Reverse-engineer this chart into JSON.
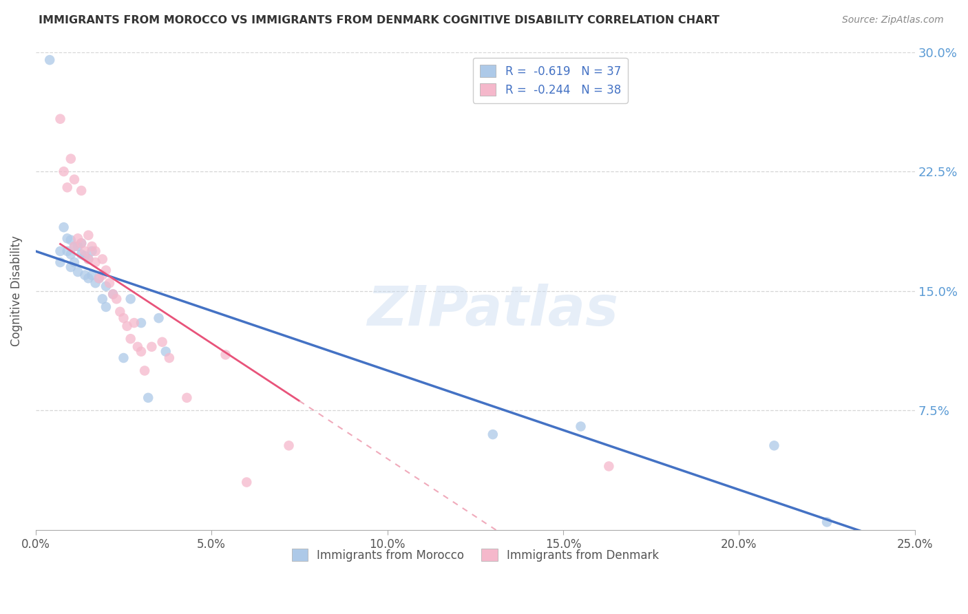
{
  "title": "IMMIGRANTS FROM MOROCCO VS IMMIGRANTS FROM DENMARK COGNITIVE DISABILITY CORRELATION CHART",
  "source": "Source: ZipAtlas.com",
  "ylabel": "Cognitive Disability",
  "ylabel_right_ticks": [
    "7.5%",
    "15.0%",
    "22.5%",
    "30.0%"
  ],
  "ylim": [
    0.0,
    0.3
  ],
  "xlim": [
    0.0,
    0.25
  ],
  "xticks": [
    0.0,
    0.05,
    0.1,
    0.15,
    0.2,
    0.25
  ],
  "yticks": [
    0.075,
    0.15,
    0.225,
    0.3
  ],
  "legend_entry1": {
    "label": "Immigrants from Morocco",
    "R": "-0.619",
    "N": "37",
    "color": "#adc9e8"
  },
  "legend_entry2": {
    "label": "Immigrants from Denmark",
    "R": "-0.244",
    "N": "38",
    "color": "#f5b8cb"
  },
  "watermark": "ZIPatlas",
  "morocco_x": [
    0.004,
    0.007,
    0.007,
    0.008,
    0.009,
    0.009,
    0.01,
    0.01,
    0.01,
    0.011,
    0.011,
    0.012,
    0.012,
    0.013,
    0.013,
    0.014,
    0.014,
    0.015,
    0.015,
    0.016,
    0.016,
    0.017,
    0.018,
    0.019,
    0.02,
    0.02,
    0.022,
    0.025,
    0.027,
    0.03,
    0.032,
    0.035,
    0.037,
    0.13,
    0.155,
    0.21,
    0.225
  ],
  "morocco_y": [
    0.295,
    0.175,
    0.168,
    0.19,
    0.183,
    0.175,
    0.182,
    0.173,
    0.165,
    0.178,
    0.168,
    0.178,
    0.162,
    0.18,
    0.173,
    0.172,
    0.16,
    0.17,
    0.158,
    0.175,
    0.16,
    0.155,
    0.158,
    0.145,
    0.153,
    0.14,
    0.148,
    0.108,
    0.145,
    0.13,
    0.083,
    0.133,
    0.112,
    0.06,
    0.065,
    0.053,
    0.005
  ],
  "denmark_x": [
    0.007,
    0.008,
    0.009,
    0.01,
    0.011,
    0.011,
    0.012,
    0.013,
    0.013,
    0.014,
    0.015,
    0.015,
    0.016,
    0.017,
    0.017,
    0.018,
    0.019,
    0.019,
    0.02,
    0.021,
    0.022,
    0.023,
    0.024,
    0.025,
    0.026,
    0.027,
    0.028,
    0.029,
    0.03,
    0.031,
    0.033,
    0.036,
    0.038,
    0.043,
    0.054,
    0.06,
    0.072,
    0.163
  ],
  "denmark_y": [
    0.258,
    0.225,
    0.215,
    0.233,
    0.22,
    0.178,
    0.183,
    0.213,
    0.18,
    0.175,
    0.185,
    0.17,
    0.178,
    0.175,
    0.168,
    0.158,
    0.17,
    0.16,
    0.163,
    0.155,
    0.148,
    0.145,
    0.137,
    0.133,
    0.128,
    0.12,
    0.13,
    0.115,
    0.112,
    0.1,
    0.115,
    0.118,
    0.108,
    0.083,
    0.11,
    0.03,
    0.053,
    0.04
  ],
  "morocco_line_color": "#4472c4",
  "denmark_line_color": "#e8537a",
  "denmark_dash_color": "#f0aabb",
  "background_color": "#ffffff",
  "grid_color": "#cccccc"
}
